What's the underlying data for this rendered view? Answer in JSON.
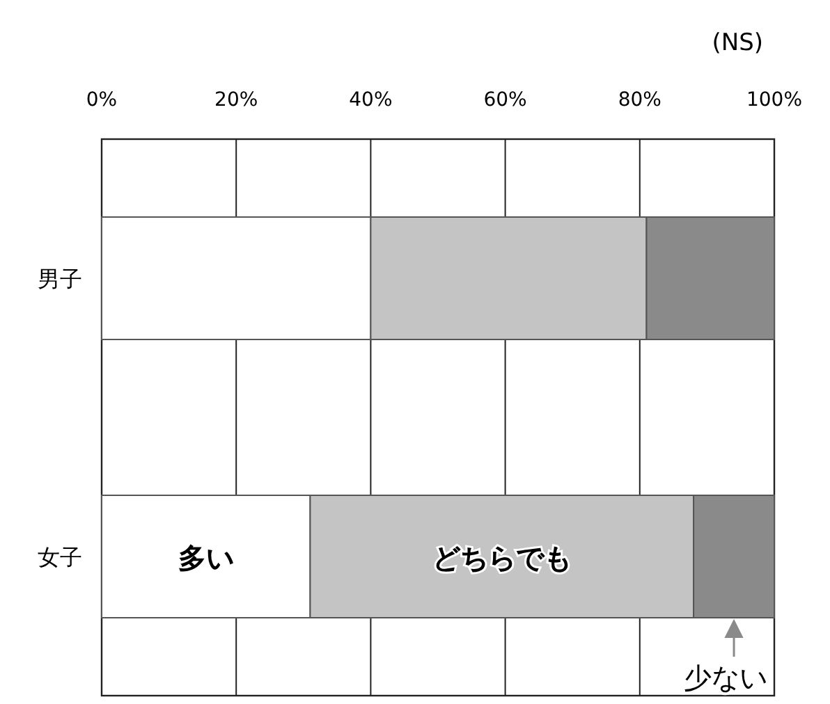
{
  "chart_data": {
    "type": "bar",
    "orientation": "horizontal",
    "stacked": true,
    "annotations": [
      "(NS)"
    ],
    "categories": [
      "男子",
      "女子"
    ],
    "series": [
      {
        "name": "多い",
        "color": "#ffffff",
        "values": [
          40,
          31
        ]
      },
      {
        "name": "どちらでも",
        "color": "#c4c4c4",
        "values": [
          41,
          57
        ]
      },
      {
        "name": "少ない",
        "color": "#8a8a8a",
        "values": [
          19,
          12
        ]
      }
    ],
    "xlim": [
      0,
      100
    ],
    "xticks": [
      {
        "value": 0,
        "label": "0%"
      },
      {
        "value": 20,
        "label": "20%"
      },
      {
        "value": 40,
        "label": "40%"
      },
      {
        "value": 60,
        "label": "60%"
      },
      {
        "value": 80,
        "label": "80%"
      },
      {
        "value": 100,
        "label": "100%"
      }
    ],
    "grid": "x"
  }
}
